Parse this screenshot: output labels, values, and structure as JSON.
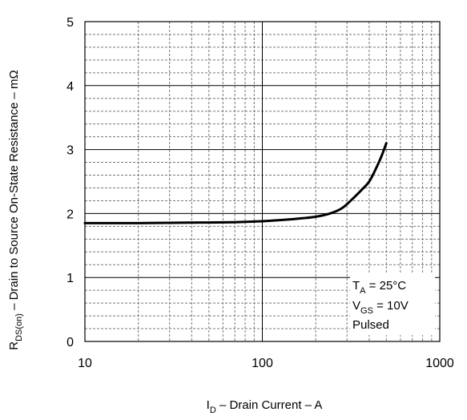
{
  "chart_data": {
    "type": "line",
    "x_scale": "log",
    "xlim": [
      10,
      1000
    ],
    "ylim": [
      0,
      5
    ],
    "x_ticks": [
      {
        "value": 10,
        "label": "10"
      },
      {
        "value": 100,
        "label": "100"
      },
      {
        "value": 1000,
        "label": "1000"
      }
    ],
    "y_ticks": [
      {
        "value": 0,
        "label": "0"
      },
      {
        "value": 1,
        "label": "1"
      },
      {
        "value": 2,
        "label": "2"
      },
      {
        "value": 3,
        "label": "3"
      },
      {
        "value": 4,
        "label": "4"
      },
      {
        "value": 5,
        "label": "5"
      }
    ],
    "y_minor_step": 0.2,
    "grid": true,
    "xlabel": {
      "main": "I",
      "sub": "D",
      "rest": " – Drain Current – A"
    },
    "ylabel": {
      "main": "R",
      "sub": "DS(on)",
      "rest": " – Drain to Source On-State Resistance – mΩ"
    },
    "annotations": [
      {
        "id": "ta",
        "main": "T",
        "sub": "A",
        "rest": " = 25°C"
      },
      {
        "id": "vgs",
        "main": "V",
        "sub": "GS",
        "rest": " = 10V"
      },
      {
        "id": "pulsed",
        "main": "Pulsed",
        "sub": "",
        "rest": ""
      }
    ],
    "series": [
      {
        "color": "#000000",
        "points": [
          [
            10,
            1.85
          ],
          [
            20,
            1.85
          ],
          [
            30,
            1.855
          ],
          [
            50,
            1.86
          ],
          [
            70,
            1.865
          ],
          [
            100,
            1.88
          ],
          [
            130,
            1.9
          ],
          [
            160,
            1.92
          ],
          [
            200,
            1.95
          ],
          [
            240,
            2.0
          ],
          [
            280,
            2.08
          ],
          [
            320,
            2.22
          ],
          [
            360,
            2.36
          ],
          [
            400,
            2.5
          ],
          [
            440,
            2.72
          ],
          [
            470,
            2.9
          ],
          [
            500,
            3.1
          ]
        ]
      }
    ]
  }
}
